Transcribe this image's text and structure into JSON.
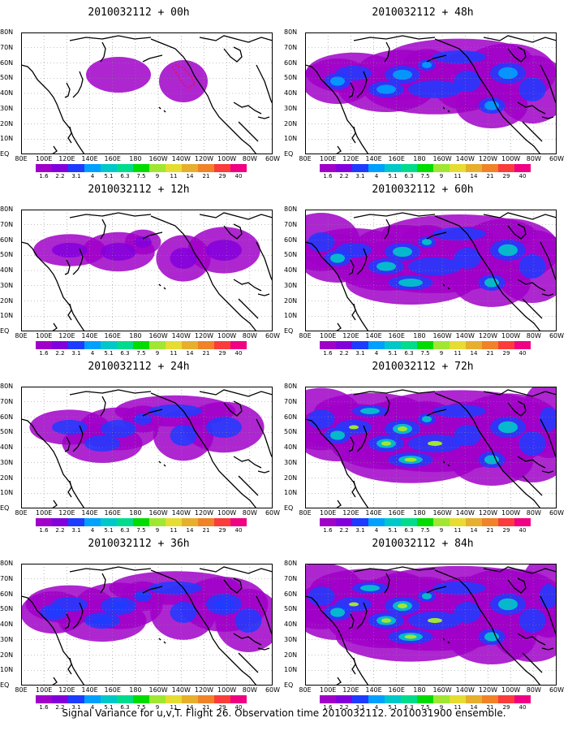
{
  "lat_labels": [
    "80N",
    "70N",
    "60N",
    "50N",
    "40N",
    "30N",
    "20N",
    "10N",
    "EQ"
  ],
  "lon_labels": [
    "80E",
    "100E",
    "120E",
    "140E",
    "160E",
    "180",
    "160W",
    "140W",
    "120W",
    "100W",
    "80W",
    "60W"
  ],
  "colorbar": {
    "values": [
      "1.6",
      "2.2",
      "3.1",
      "4",
      "5.1",
      "6.3",
      "7.5",
      "9",
      "11",
      "14",
      "21",
      "29",
      "40"
    ],
    "colors": [
      "#a000c8",
      "#8200dc",
      "#1e3cff",
      "#00a0ff",
      "#00c8c8",
      "#00dc8c",
      "#00dc00",
      "#a0e632",
      "#e6dc32",
      "#e6af2d",
      "#f08228",
      "#fa3c3c",
      "#f00082"
    ]
  },
  "panels": [
    {
      "title": "2010032112 + 00h",
      "level": 0
    },
    {
      "title": "2010032112 + 48h",
      "level": 4
    },
    {
      "title": "2010032112 + 12h",
      "level": 1
    },
    {
      "title": "2010032112 + 60h",
      "level": 5
    },
    {
      "title": "2010032112 + 24h",
      "level": 2
    },
    {
      "title": "2010032112 + 72h",
      "level": 6
    },
    {
      "title": "2010032112 + 36h",
      "level": 3
    },
    {
      "title": "2010032112 + 84h",
      "level": 7
    }
  ],
  "caption": "Signal Variance for u,v,T. Flight 26. Observation time 2010032112. 2010031900 ensemble."
}
